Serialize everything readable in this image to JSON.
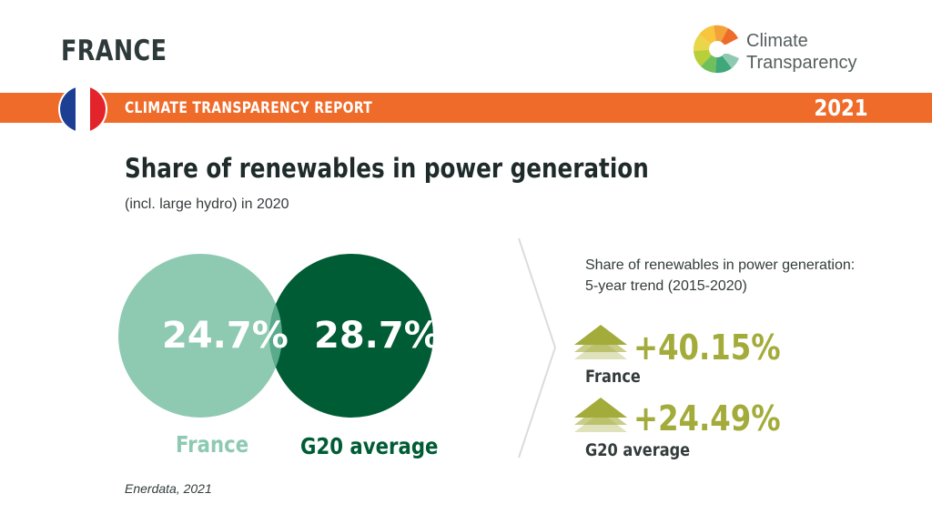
{
  "header": {
    "country": "FRANCE",
    "logo_line1": "Climate",
    "logo_line2": "Transparency"
  },
  "banner": {
    "report_title": "CLIMATE TRANSPARENCY REPORT",
    "year": "2021"
  },
  "colors": {
    "banner": "#ef6b2a",
    "france": "#8ecab2",
    "g20": "#005c35",
    "trend": "#a3ab3a"
  },
  "main": {
    "title": "Share of renewables in power generation",
    "subtitle": "(incl. large hydro) in 2020",
    "france_value": "24.7%",
    "france_label": "France",
    "g20_value": "28.7%",
    "g20_label": "G20 average"
  },
  "trend": {
    "heading_line1": "Share of renewables in power generation:",
    "heading_line2": "5-year trend (2015-2020)",
    "items": [
      {
        "value": "+40.15%",
        "label": "France",
        "icon": "up-triangle-icon"
      },
      {
        "value": "+24.49%",
        "label": "G20 average",
        "icon": "up-triangle-icon"
      }
    ]
  },
  "source": "Enerdata, 2021"
}
